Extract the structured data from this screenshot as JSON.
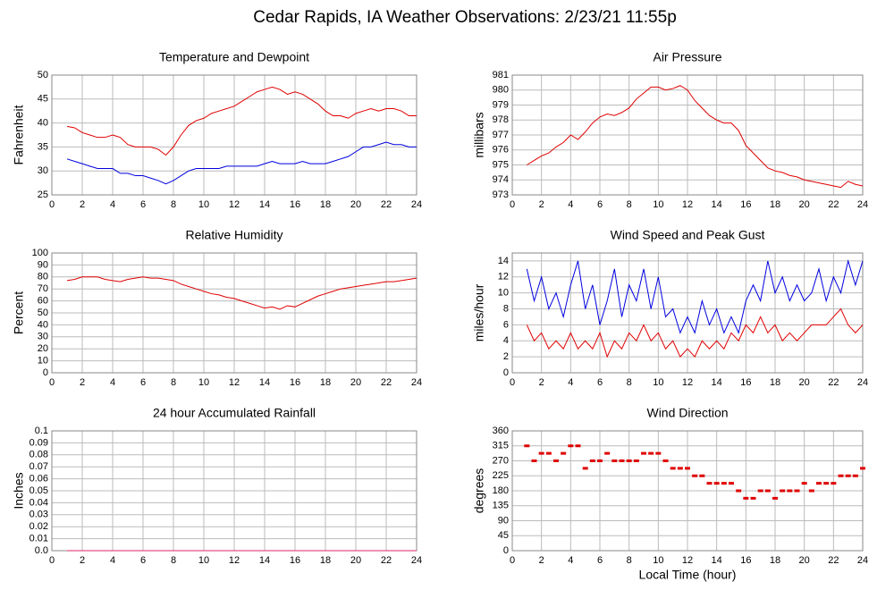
{
  "title": "Cedar Rapids, IA Weather Observations: 2/23/21 11:55p",
  "chart_data": [
    {
      "type": "line",
      "title": "Temperature and Dewpoint",
      "ylabel": "Fahrenheit",
      "xlim": [
        0,
        24
      ],
      "xticks": [
        0,
        2,
        4,
        6,
        8,
        10,
        12,
        14,
        16,
        18,
        20,
        22,
        24
      ],
      "ylim": [
        25,
        50
      ],
      "yticks": [
        25,
        30,
        35,
        40,
        45,
        50
      ],
      "grid": true,
      "x": [
        1,
        1.5,
        2,
        2.5,
        3,
        3.5,
        4,
        4.5,
        5,
        5.5,
        6,
        6.5,
        7,
        7.5,
        8,
        8.5,
        9,
        9.5,
        10,
        10.5,
        11,
        11.5,
        12,
        12.5,
        13,
        13.5,
        14,
        14.5,
        15,
        15.5,
        16,
        16.5,
        17,
        17.5,
        18,
        18.5,
        19,
        19.5,
        20,
        20.5,
        21,
        21.5,
        22,
        22.5,
        23,
        23.5,
        24
      ],
      "series": [
        {
          "color": "#e00000",
          "values": [
            39.3,
            39,
            38,
            37.5,
            37,
            37,
            37.5,
            37,
            35.5,
            35,
            35,
            35,
            34.5,
            33.3,
            35,
            37.5,
            39.5,
            40.5,
            41,
            42,
            42.5,
            43,
            43.5,
            44.5,
            45.5,
            46.5,
            47,
            47.5,
            47,
            46,
            46.5,
            46,
            45,
            44,
            42.5,
            41.5,
            41.5,
            41,
            42,
            42.5,
            43,
            42.5,
            43,
            43,
            42.5,
            41.5,
            41.5
          ]
        },
        {
          "color": "#0000e0",
          "values": [
            32.5,
            32,
            31.5,
            31,
            30.5,
            30.5,
            30.5,
            29.5,
            29.5,
            29,
            29,
            28.5,
            28,
            27.3,
            28,
            29,
            30,
            30.5,
            30.5,
            30.5,
            30.5,
            31,
            31,
            31,
            31,
            31,
            31.5,
            32,
            31.5,
            31.5,
            31.5,
            32,
            31.5,
            31.5,
            31.5,
            32,
            32.5,
            33,
            34,
            35,
            35,
            35.5,
            36,
            35.5,
            35.5,
            35,
            35
          ]
        }
      ]
    },
    {
      "type": "line",
      "title": "Air Pressure",
      "ylabel": "millibars",
      "xlim": [
        0,
        24
      ],
      "xticks": [
        0,
        2,
        4,
        6,
        8,
        10,
        12,
        14,
        16,
        18,
        20,
        22,
        24
      ],
      "ylim": [
        973,
        981
      ],
      "yticks": [
        973,
        974,
        975,
        976,
        977,
        978,
        979,
        980,
        981
      ],
      "grid": true,
      "x": [
        1,
        1.5,
        2,
        2.5,
        3,
        3.5,
        4,
        4.5,
        5,
        5.5,
        6,
        6.5,
        7,
        7.5,
        8,
        8.5,
        9,
        9.5,
        10,
        10.5,
        11,
        11.5,
        12,
        12.5,
        13,
        13.5,
        14,
        14.5,
        15,
        15.5,
        16,
        16.5,
        17,
        17.5,
        18,
        18.5,
        19,
        19.5,
        20,
        20.5,
        21,
        21.5,
        22,
        22.5,
        23,
        23.5,
        24
      ],
      "series": [
        {
          "color": "#e00000",
          "values": [
            975,
            975.3,
            975.6,
            975.8,
            976.2,
            976.5,
            977,
            976.7,
            977.2,
            977.8,
            978.2,
            978.4,
            978.3,
            978.5,
            978.8,
            979.4,
            979.8,
            980.2,
            980.2,
            980,
            980.1,
            980.3,
            980,
            979.3,
            978.8,
            978.3,
            978,
            977.8,
            977.8,
            977.3,
            976.3,
            975.8,
            975.3,
            974.8,
            974.6,
            974.5,
            974.3,
            974.2,
            974,
            973.9,
            973.8,
            973.7,
            973.6,
            973.5,
            973.9,
            973.7,
            973.6
          ]
        }
      ]
    },
    {
      "type": "line",
      "title": "Relative Humidity",
      "ylabel": "Percent",
      "xlim": [
        0,
        24
      ],
      "xticks": [
        0,
        2,
        4,
        6,
        8,
        10,
        12,
        14,
        16,
        18,
        20,
        22,
        24
      ],
      "ylim": [
        0,
        100
      ],
      "yticks": [
        0,
        10,
        20,
        30,
        40,
        50,
        60,
        70,
        80,
        90,
        100
      ],
      "grid": true,
      "x": [
        1,
        1.5,
        2,
        2.5,
        3,
        3.5,
        4,
        4.5,
        5,
        5.5,
        6,
        6.5,
        7,
        7.5,
        8,
        8.5,
        9,
        9.5,
        10,
        10.5,
        11,
        11.5,
        12,
        12.5,
        13,
        13.5,
        14,
        14.5,
        15,
        15.5,
        16,
        16.5,
        17,
        17.5,
        18,
        18.5,
        19,
        19.5,
        20,
        20.5,
        21,
        21.5,
        22,
        22.5,
        23,
        23.5,
        24
      ],
      "series": [
        {
          "color": "#e00000",
          "values": [
            77,
            78,
            80,
            80,
            80,
            78,
            77,
            76,
            78,
            79,
            80,
            79,
            79,
            78,
            77,
            74,
            72,
            70,
            68,
            66,
            65,
            63,
            62,
            60,
            58,
            56,
            54,
            55,
            53,
            56,
            55,
            58,
            61,
            64,
            66,
            68,
            70,
            71,
            72,
            73,
            74,
            75,
            76,
            76,
            77,
            78,
            79
          ]
        }
      ]
    },
    {
      "type": "line",
      "title": "Wind Speed and Peak Gust",
      "ylabel": "miles/hour",
      "xlim": [
        0,
        24
      ],
      "xticks": [
        0,
        2,
        4,
        6,
        8,
        10,
        12,
        14,
        16,
        18,
        20,
        22,
        24
      ],
      "ylim": [
        0,
        15
      ],
      "yticks": [
        0,
        2,
        4,
        6,
        8,
        10,
        12,
        14
      ],
      "grid": true,
      "x": [
        1,
        1.5,
        2,
        2.5,
        3,
        3.5,
        4,
        4.5,
        5,
        5.5,
        6,
        6.5,
        7,
        7.5,
        8,
        8.5,
        9,
        9.5,
        10,
        10.5,
        11,
        11.5,
        12,
        12.5,
        13,
        13.5,
        14,
        14.5,
        15,
        15.5,
        16,
        16.5,
        17,
        17.5,
        18,
        18.5,
        19,
        19.5,
        20,
        20.5,
        21,
        21.5,
        22,
        22.5,
        23,
        23.5,
        24
      ],
      "series": [
        {
          "color": "#0000e0",
          "values": [
            13,
            9,
            12,
            8,
            10,
            7,
            11,
            14,
            8,
            11,
            6,
            9,
            13,
            7,
            11,
            9,
            13,
            8,
            12,
            7,
            8,
            5,
            7,
            5,
            9,
            6,
            8,
            5,
            7,
            5,
            9,
            11,
            9,
            14,
            10,
            12,
            9,
            11,
            9,
            10,
            13,
            9,
            12,
            10,
            14,
            11,
            14
          ]
        },
        {
          "color": "#e00000",
          "values": [
            6,
            4,
            5,
            3,
            4,
            3,
            5,
            3,
            4,
            3,
            5,
            2,
            4,
            3,
            5,
            4,
            6,
            4,
            5,
            3,
            4,
            2,
            3,
            2,
            4,
            3,
            4,
            3,
            5,
            4,
            6,
            5,
            7,
            5,
            6,
            4,
            5,
            4,
            5,
            6,
            6,
            6,
            7,
            8,
            6,
            5,
            6
          ]
        }
      ]
    },
    {
      "type": "line",
      "title": "24 hour Accumulated Rainfall",
      "ylabel": "Inches",
      "xlim": [
        0,
        24
      ],
      "xticks": [
        0,
        2,
        4,
        6,
        8,
        10,
        12,
        14,
        16,
        18,
        20,
        22,
        24
      ],
      "ylim": [
        0,
        0.1
      ],
      "yticks": [
        {
          "value": 0,
          "label": "0.0"
        },
        0.01,
        0.02,
        0.03,
        0.04,
        0.05,
        0.06,
        0.07,
        0.08,
        0.09,
        0.1
      ],
      "grid": true,
      "x": [
        1,
        24
      ],
      "series": [
        {
          "color": "#e0206a",
          "values": [
            0,
            0
          ]
        }
      ]
    },
    {
      "type": "scatter",
      "title": "Wind Direction",
      "ylabel": "degrees",
      "xlabel": "Local Time (hour)",
      "xlim": [
        0,
        24
      ],
      "xticks": [
        0,
        2,
        4,
        6,
        8,
        10,
        12,
        14,
        16,
        18,
        20,
        22,
        24
      ],
      "ylim": [
        0,
        360
      ],
      "yticks": [
        0,
        45,
        90,
        135,
        180,
        225,
        270,
        315,
        360
      ],
      "grid": true,
      "x": [
        1,
        1.5,
        2,
        2.5,
        3,
        3.5,
        4,
        4.5,
        5,
        5.5,
        6,
        6.5,
        7,
        7.5,
        8,
        8.5,
        9,
        9.5,
        10,
        10.5,
        11,
        11.5,
        12,
        12.5,
        13,
        13.5,
        14,
        14.5,
        15,
        15.5,
        16,
        16.5,
        17,
        17.5,
        18,
        18.5,
        19,
        19.5,
        20,
        20.5,
        21,
        21.5,
        22,
        22.5,
        23,
        23.5,
        24
      ],
      "series": [
        {
          "color": "#e00000",
          "values": [
            315,
            270,
            292.5,
            292.5,
            270,
            292.5,
            315,
            315,
            247.5,
            270,
            270,
            292.5,
            270,
            270,
            270,
            270,
            292.5,
            292.5,
            292.5,
            270,
            247.5,
            247.5,
            247.5,
            225,
            225,
            202.5,
            202.5,
            202.5,
            202.5,
            180,
            157.5,
            157.5,
            180,
            180,
            157.5,
            180,
            180,
            180,
            202.5,
            180,
            202.5,
            202.5,
            202.5,
            225,
            225,
            225,
            247.5
          ]
        }
      ]
    }
  ]
}
